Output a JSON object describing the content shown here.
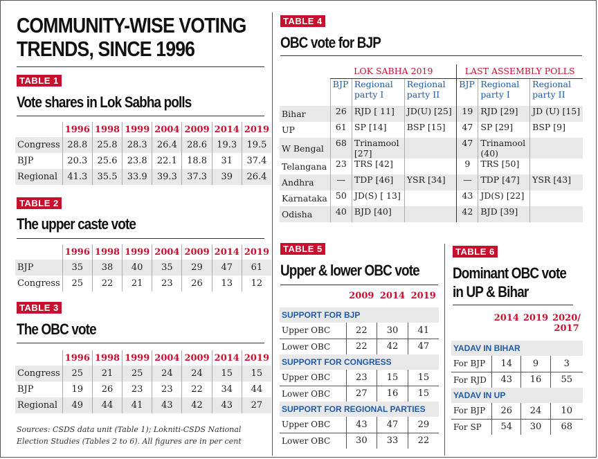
{
  "title_line1": "COMMUNITY-WISE VOTING",
  "title_line2": "TRENDS, SINCE 1996",
  "t1": {
    "tag": "TABLE 1",
    "title": "Vote shares in Lok Sabha polls",
    "years": [
      "1996",
      "1998",
      "1999",
      "2004",
      "2009",
      "2014",
      "2019"
    ],
    "rows": [
      {
        "label": "Congress",
        "v": [
          "28.8",
          "25.8",
          "28.3",
          "26.4",
          "28.6",
          "19.3",
          "19.5"
        ]
      },
      {
        "label": "BJP",
        "v": [
          "20.3",
          "25.6",
          "23.8",
          "22.1",
          "18.8",
          "31",
          "37.4"
        ]
      },
      {
        "label": "Regional",
        "v": [
          "41.3",
          "35.5",
          "33.9",
          "39.3",
          "37.3",
          "39",
          "26.4"
        ]
      }
    ]
  },
  "t2": {
    "tag": "TABLE 2",
    "title": "The upper caste vote",
    "years": [
      "1996",
      "1998",
      "1999",
      "2004",
      "2009",
      "2014",
      "2019"
    ],
    "rows": [
      {
        "label": "BJP",
        "v": [
          "35",
          "38",
          "40",
          "35",
          "29",
          "47",
          "61"
        ]
      },
      {
        "label": "Congress",
        "v": [
          "25",
          "22",
          "21",
          "23",
          "26",
          "13",
          "12"
        ]
      }
    ]
  },
  "t3": {
    "tag": "TABLE 3",
    "title": "The OBC vote",
    "years": [
      "1996",
      "1998",
      "1999",
      "2004",
      "2009",
      "2014",
      "2019"
    ],
    "rows": [
      {
        "label": "Congress",
        "v": [
          "25",
          "21",
          "25",
          "24",
          "24",
          "15",
          "15"
        ]
      },
      {
        "label": "BJP",
        "v": [
          "19",
          "26",
          "23",
          "23",
          "22",
          "34",
          "44"
        ]
      },
      {
        "label": "Regional",
        "v": [
          "49",
          "44",
          "41",
          "43",
          "42",
          "43",
          "27"
        ]
      }
    ]
  },
  "sources": "Sources: CSDS data unit (Table 1); Lokniti-CSDS National Election Studies (Tables 2 to 6). All figures are in per cent",
  "t4": {
    "tag": "TABLE 4",
    "title": "OBC vote for BJP",
    "group1": "LOK SABHA 2019",
    "group2": "LAST ASSEMBLY POLLS",
    "cols": [
      "BJP",
      "Regional party I",
      "Regional party II",
      "BJP",
      "Regional party I",
      "Regional party II"
    ],
    "rows": [
      {
        "state": "Bihar",
        "v": [
          "26",
          "RJD [ 11]",
          "JD(U) [25]",
          "19",
          "RJD [29]",
          "JD (U) [15]"
        ]
      },
      {
        "state": "UP",
        "v": [
          "61",
          "SP [14]",
          "BSP [15]",
          "47",
          "SP [29]",
          "BSP [9]"
        ]
      },
      {
        "state": "W Bengal",
        "v": [
          "68",
          "Trinamool [27]",
          "",
          "47",
          "Trinamool (40)",
          ""
        ]
      },
      {
        "state": "Telangana",
        "v": [
          "23",
          "TRS [42]",
          "",
          "9",
          "TRS [50]",
          ""
        ]
      },
      {
        "state": "Andhra",
        "v": [
          "—",
          "TDP [46]",
          "YSR [34]",
          "—",
          "TDP [47]",
          "YSR [43]"
        ]
      },
      {
        "state": "Karnataka",
        "v": [
          "50",
          "JD(S) [ 13]",
          "",
          "43",
          "JD(S) [22]",
          ""
        ]
      },
      {
        "state": "Odisha",
        "v": [
          "40",
          "BJD [40]",
          "",
          "42",
          "BJD [39]",
          ""
        ]
      }
    ]
  },
  "t5": {
    "tag": "TABLE 5",
    "title": "Upper & lower OBC vote",
    "years": [
      "2009",
      "2014",
      "2019"
    ],
    "sections": [
      {
        "name": "SUPPORT FOR BJP",
        "rows": [
          {
            "label": "Upper OBC",
            "v": [
              "22",
              "30",
              "41"
            ]
          },
          {
            "label": "Lower OBC",
            "v": [
              "22",
              "42",
              "47"
            ]
          }
        ]
      },
      {
        "name": "SUPPORT FOR CONGRESS",
        "rows": [
          {
            "label": "Upper OBC",
            "v": [
              "23",
              "15",
              "15"
            ]
          },
          {
            "label": "Lower OBC",
            "v": [
              "27",
              "16",
              "15"
            ]
          }
        ]
      },
      {
        "name": "SUPPORT FOR REGIONAL PARTIES",
        "rows": [
          {
            "label": "Upper OBC",
            "v": [
              "43",
              "47",
              "29"
            ]
          },
          {
            "label": "Lower OBC",
            "v": [
              "30",
              "33",
              "22"
            ]
          }
        ]
      }
    ]
  },
  "t6": {
    "tag": "TABLE 6",
    "title_line1": "Dominant OBC vote",
    "title_line2": "in UP & Bihar",
    "years": [
      "2014",
      "2019",
      "2020/ 2017"
    ],
    "sections": [
      {
        "name": "YADAV IN BIHAR",
        "rows": [
          {
            "label": "For BJP",
            "v": [
              "14",
              "9",
              "3"
            ]
          },
          {
            "label": "For RJD",
            "v": [
              "43",
              "16",
              "55"
            ]
          }
        ]
      },
      {
        "name": "YADAV IN UP",
        "rows": [
          {
            "label": "For BJP",
            "v": [
              "26",
              "24",
              "10"
            ]
          },
          {
            "label": "For SP",
            "v": [
              "54",
              "30",
              "68"
            ]
          }
        ]
      }
    ]
  },
  "colors": {
    "accent": "#c8102e",
    "blue": "#1f5aa8",
    "shade": "#e8e8e8"
  }
}
